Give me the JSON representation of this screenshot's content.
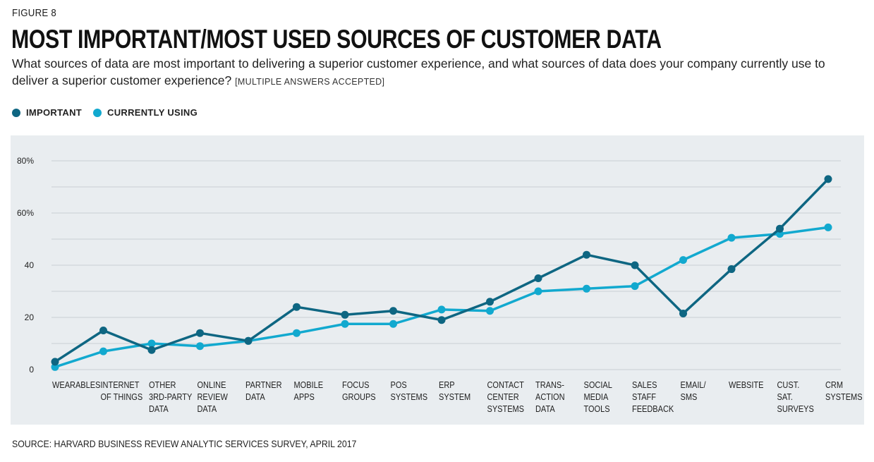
{
  "figure_label": "FIGURE 8",
  "title": "MOST IMPORTANT/MOST USED SOURCES OF CUSTOMER DATA",
  "subtitle": "What sources of data are most important to delivering a superior customer experience, and what sources of data does your company currently use to deliver a superior customer experience?",
  "subtitle_note": "[MULTIPLE ANSWERS ACCEPTED]",
  "source": "SOURCE: HARVARD BUSINESS REVIEW ANALYTIC SERVICES SURVEY, APRIL 2017",
  "colors": {
    "important": "#0e6682",
    "currently_using": "#12a9cf",
    "panel": "#e9edf0",
    "grid": "#c9d0d5"
  },
  "chart_data": {
    "type": "line",
    "categories": [
      [
        "WEARABLES"
      ],
      [
        "INTERNET",
        "OF THINGS"
      ],
      [
        "OTHER",
        "3RD-PARTY",
        "DATA"
      ],
      [
        "ONLINE",
        "REVIEW",
        "DATA"
      ],
      [
        "PARTNER",
        "DATA"
      ],
      [
        "MOBILE",
        "APPS"
      ],
      [
        "FOCUS",
        "GROUPS"
      ],
      [
        "POS",
        "SYSTEMS"
      ],
      [
        "ERP",
        "SYSTEM"
      ],
      [
        "CONTACT",
        "CENTER",
        "SYSTEMS"
      ],
      [
        "TRANS-",
        "ACTION",
        "DATA"
      ],
      [
        "SOCIAL",
        "MEDIA",
        "TOOLS"
      ],
      [
        "SALES",
        "STAFF",
        "FEEDBACK"
      ],
      [
        "EMAIL/",
        "SMS"
      ],
      [
        "WEBSITE"
      ],
      [
        "CUST.",
        "SAT.",
        "SURVEYS"
      ],
      [
        "CRM",
        "SYSTEMS"
      ]
    ],
    "series": [
      {
        "name": "IMPORTANT",
        "values": [
          3,
          15,
          7.5,
          14,
          11,
          24,
          21,
          22.5,
          19,
          26,
          35,
          44,
          40,
          21.5,
          38.5,
          54,
          73
        ]
      },
      {
        "name": "CURRENTLY USING",
        "values": [
          1,
          7,
          10,
          9,
          11,
          14,
          17.5,
          17.5,
          23,
          22.5,
          30,
          31,
          32,
          42,
          50.5,
          52,
          54.5
        ]
      }
    ],
    "ylim": [
      0,
      80
    ],
    "y_ticks": [
      0,
      20,
      40,
      60,
      80
    ],
    "y_tick_labels": [
      "0",
      "20",
      "40",
      "60%",
      "80%"
    ],
    "legend_placement": "top-left",
    "grid": true
  }
}
